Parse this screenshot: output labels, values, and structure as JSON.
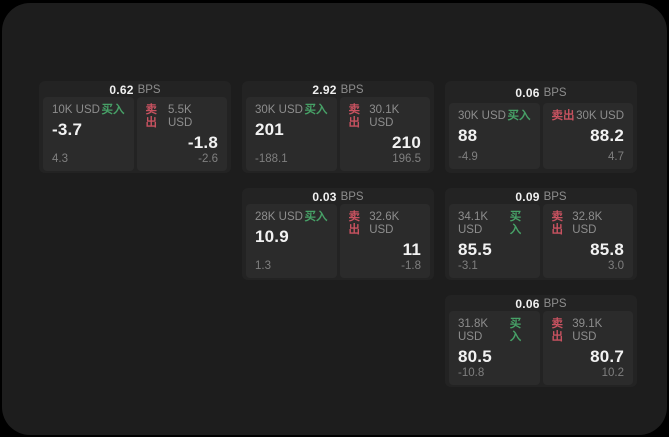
{
  "labels": {
    "bps_unit": "BPS",
    "buy": "买入",
    "sell": "卖出"
  },
  "colors": {
    "background": "#000000",
    "surface": "#1d1d1d",
    "card": "#232323",
    "subpanel": "#2b2b2b",
    "buy_green": "#47a167",
    "sell_red": "#c85260",
    "text_primary": "#f2f2f2",
    "text_muted": "#8d8d8d"
  },
  "cards": [
    {
      "bps": "0.62",
      "buy": {
        "size": "10K USD",
        "value": "-3.7",
        "sub": "4.3"
      },
      "sell": {
        "size": "5.5K USD",
        "value": "-1.8",
        "sub": "-2.6"
      }
    },
    {
      "bps": "2.92",
      "buy": {
        "size": "30K USD",
        "value": "201",
        "sub": "-188.1"
      },
      "sell": {
        "size": "30.1K USD",
        "value": "210",
        "sub": "196.5"
      }
    },
    {
      "bps": "0.06",
      "buy": {
        "size": "30K USD",
        "value": "88",
        "sub": "-4.9"
      },
      "sell": {
        "size": "30K USD",
        "value": "88.2",
        "sub": "4.7"
      }
    },
    {
      "bps": "0.03",
      "buy": {
        "size": "28K USD",
        "value": "10.9",
        "sub": "1.3"
      },
      "sell": {
        "size": "32.6K USD",
        "value": "11",
        "sub": "-1.8"
      }
    },
    {
      "bps": "0.09",
      "buy": {
        "size": "34.1K USD",
        "value": "85.5",
        "sub": "-3.1"
      },
      "sell": {
        "size": "32.8K USD",
        "value": "85.8",
        "sub": "3.0"
      }
    },
    {
      "bps": "0.06",
      "buy": {
        "size": "31.8K USD",
        "value": "80.5",
        "sub": "-10.8"
      },
      "sell": {
        "size": "39.1K USD",
        "value": "80.7",
        "sub": "10.2"
      }
    }
  ]
}
